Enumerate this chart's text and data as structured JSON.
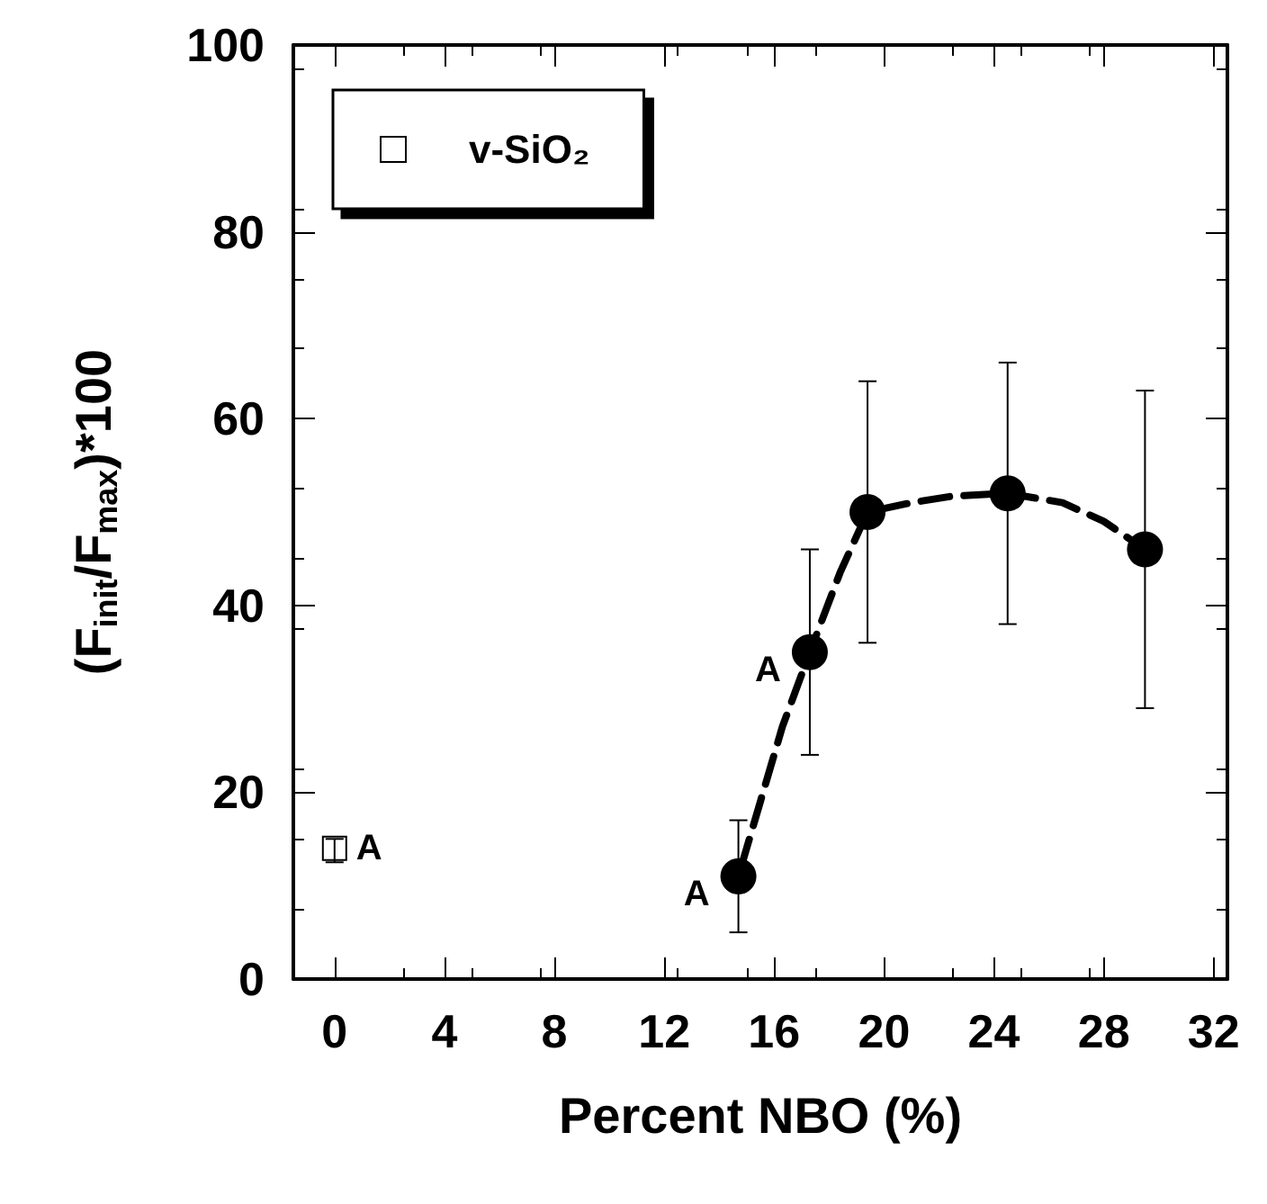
{
  "chart_data": {
    "type": "scatter",
    "xlabel": "Percent NBO (%)",
    "ylabel": "(F$_{init}$/F$_{max}$)*100",
    "xlim": [
      -1.5,
      32.5
    ],
    "xticks": [
      0,
      4,
      8,
      12,
      16,
      20,
      24,
      28,
      32
    ],
    "ylim": [
      0,
      100
    ],
    "yticks": [
      0,
      20,
      40,
      60,
      80,
      100
    ],
    "grid": false,
    "legend": "top left",
    "series": [
      {
        "name": "v-SiO₂",
        "marker": "square",
        "color": "#000000",
        "x": [
          0
        ],
        "values": [
          14
        ],
        "errors": [
          [
            12.5,
            15
          ]
        ]
      },
      {
        "marker": "circle",
        "color": "#000000",
        "x": [
          14.7,
          17.3,
          19.4,
          24.5,
          29.5
        ],
        "values": [
          11,
          35,
          50,
          52,
          46
        ],
        "errors": [
          [
            5,
            17
          ],
          [
            24,
            46
          ],
          [
            36,
            64
          ],
          [
            38,
            66
          ],
          [
            29,
            63
          ]
        ]
      },
      {
        "type": "line",
        "marker": "none",
        "line_style": "dashed",
        "color": "#000000",
        "x": [
          14.8,
          15.5,
          16.3,
          17.3,
          18.4,
          19.4,
          21,
          22.5,
          24.5,
          26.5,
          28,
          29.5
        ],
        "values": [
          12,
          19,
          27,
          35,
          43.5,
          50,
          51,
          51.7,
          52,
          51,
          49,
          46
        ]
      }
    ],
    "annotations": [
      {
        "text": "A",
        "x": 0,
        "y": 14
      },
      {
        "text": "A",
        "x": 14.7,
        "y": 11
      },
      {
        "text": "A",
        "x": 17.3,
        "y": 35
      }
    ]
  }
}
